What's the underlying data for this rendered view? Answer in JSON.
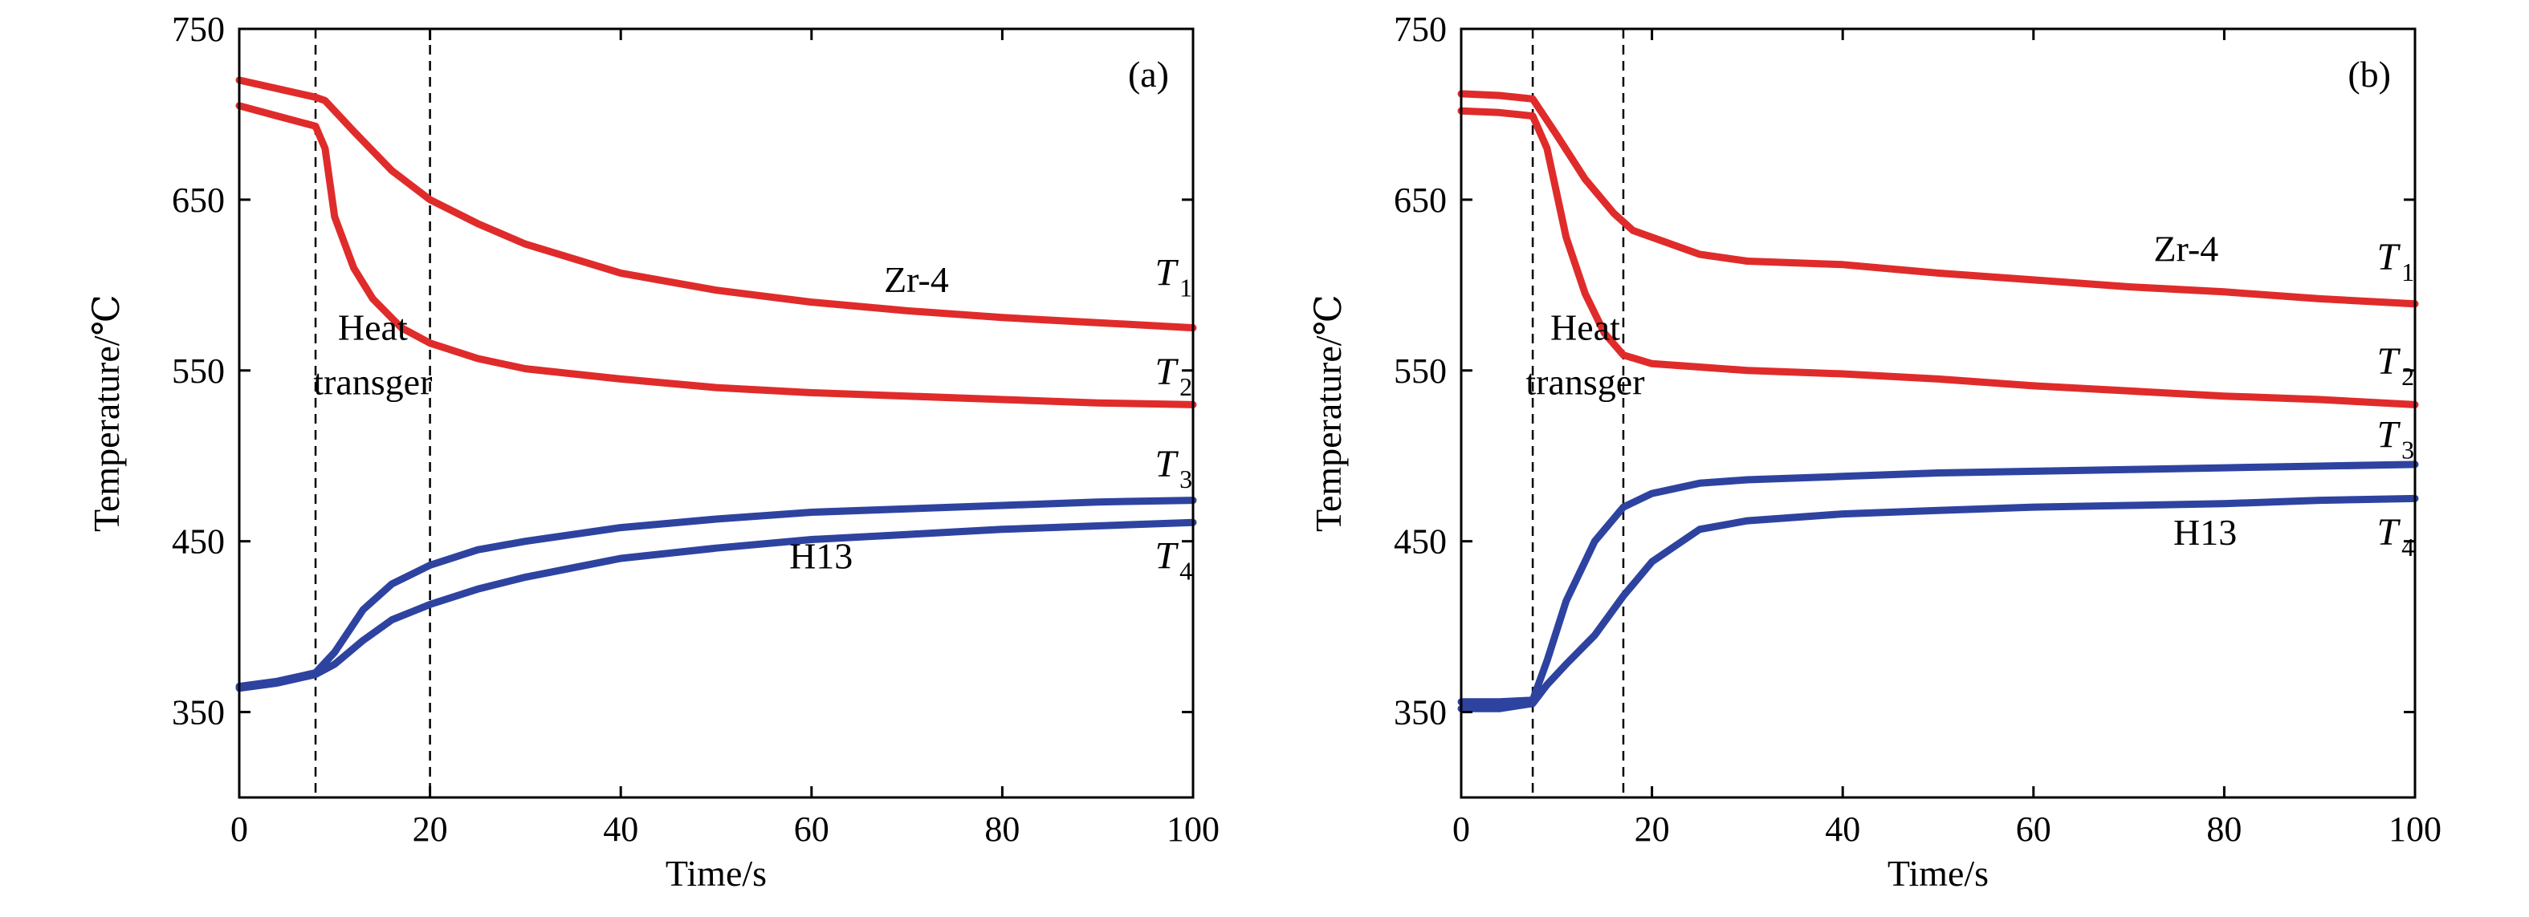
{
  "chart_data": [
    {
      "type": "line",
      "panel_label": "(a)",
      "xlabel": "Time/s",
      "ylabel": "Temperature/℃",
      "xlim": [
        0,
        100
      ],
      "ylim": [
        300,
        750
      ],
      "x_ticks": [
        0,
        20,
        40,
        60,
        80,
        100
      ],
      "y_ticks": [
        350,
        450,
        550,
        650,
        750
      ],
      "grid": false,
      "dashed_vlines": [
        8,
        20
      ],
      "annotations": [
        {
          "text": "Heat",
          "x": 14,
          "y": 568
        },
        {
          "text": "transger",
          "x": 14,
          "y": 536
        },
        {
          "text": "Zr-4",
          "x": 71,
          "y": 596
        },
        {
          "text": "H13",
          "x": 61,
          "y": 434
        }
      ],
      "series": [
        {
          "name": "T1",
          "label_main": "T",
          "label_sub": "1",
          "label_x": 96,
          "label_y": 600,
          "color": "#e02b2b",
          "x": [
            0,
            4,
            8,
            9,
            12,
            16,
            20,
            25,
            30,
            40,
            50,
            60,
            70,
            80,
            90,
            100
          ],
          "y": [
            720,
            715,
            710,
            708,
            690,
            667,
            650,
            636,
            624,
            607,
            597,
            590,
            585,
            581,
            578,
            575
          ]
        },
        {
          "name": "T2",
          "label_main": "T",
          "label_sub": "2",
          "label_x": 96,
          "label_y": 542,
          "color": "#e02b2b",
          "x": [
            0,
            4,
            8,
            9,
            10,
            12,
            14,
            17,
            20,
            25,
            30,
            40,
            50,
            60,
            70,
            80,
            90,
            100
          ],
          "y": [
            705,
            699,
            693,
            680,
            640,
            610,
            592,
            575,
            566,
            557,
            551,
            545,
            540,
            537,
            535,
            533,
            531,
            530
          ]
        },
        {
          "name": "T3",
          "label_main": "T",
          "label_sub": "3",
          "label_x": 96,
          "label_y": 488,
          "color": "#2e43a0",
          "x": [
            0,
            4,
            8,
            10,
            13,
            16,
            20,
            25,
            30,
            40,
            50,
            60,
            70,
            80,
            90,
            100
          ],
          "y": [
            365,
            368,
            373,
            385,
            410,
            425,
            436,
            445,
            450,
            458,
            463,
            467,
            469,
            471,
            473,
            474
          ]
        },
        {
          "name": "T4",
          "label_main": "T",
          "label_sub": "4",
          "label_x": 96,
          "label_y": 434,
          "color": "#2e43a0",
          "x": [
            0,
            4,
            8,
            10,
            13,
            16,
            20,
            25,
            30,
            40,
            50,
            60,
            70,
            80,
            90,
            100
          ],
          "y": [
            364,
            367,
            372,
            378,
            392,
            404,
            413,
            422,
            429,
            440,
            446,
            451,
            454,
            457,
            459,
            461
          ]
        }
      ]
    },
    {
      "type": "line",
      "panel_label": "(b)",
      "xlabel": "Time/s",
      "ylabel": "Temperature/℃",
      "xlim": [
        0,
        100
      ],
      "ylim": [
        300,
        750
      ],
      "x_ticks": [
        0,
        20,
        40,
        60,
        80,
        100
      ],
      "y_ticks": [
        350,
        450,
        550,
        650,
        750
      ],
      "grid": false,
      "dashed_vlines": [
        7.5,
        17
      ],
      "annotations": [
        {
          "text": "Heat",
          "x": 13,
          "y": 568
        },
        {
          "text": "transger",
          "x": 13,
          "y": 536
        },
        {
          "text": "Zr-4",
          "x": 76,
          "y": 614
        },
        {
          "text": "H13",
          "x": 78,
          "y": 448
        }
      ],
      "series": [
        {
          "name": "T1",
          "label_main": "T",
          "label_sub": "1",
          "label_x": 96,
          "label_y": 609,
          "color": "#e02b2b",
          "x": [
            0,
            4,
            7.5,
            10,
            13,
            16,
            18,
            20,
            25,
            30,
            40,
            50,
            60,
            70,
            80,
            90,
            100
          ],
          "y": [
            712,
            711,
            709,
            688,
            662,
            642,
            632,
            628,
            618,
            614,
            612,
            607,
            603,
            599,
            596,
            592,
            589
          ]
        },
        {
          "name": "T2",
          "label_main": "T",
          "label_sub": "2",
          "label_x": 96,
          "label_y": 548,
          "color": "#e02b2b",
          "x": [
            0,
            4,
            7.5,
            9,
            11,
            13,
            15,
            17,
            20,
            25,
            30,
            40,
            50,
            60,
            70,
            80,
            90,
            100
          ],
          "y": [
            702,
            701,
            699,
            680,
            628,
            595,
            572,
            559,
            554,
            552,
            550,
            548,
            545,
            541,
            538,
            535,
            533,
            530
          ]
        },
        {
          "name": "T3",
          "label_main": "T",
          "label_sub": "3",
          "label_x": 96,
          "label_y": 505,
          "color": "#2e43a0",
          "x": [
            0,
            4,
            7.5,
            9,
            11,
            14,
            17,
            20,
            25,
            30,
            40,
            50,
            60,
            70,
            80,
            90,
            100
          ],
          "y": [
            356,
            356,
            357,
            380,
            415,
            450,
            470,
            478,
            484,
            486,
            488,
            490,
            491,
            492,
            493,
            494,
            495
          ]
        },
        {
          "name": "T4",
          "label_main": "T",
          "label_sub": "4",
          "label_x": 96,
          "label_y": 448,
          "color": "#2e43a0",
          "x": [
            0,
            4,
            7.5,
            9,
            11,
            14,
            17,
            20,
            25,
            30,
            40,
            50,
            60,
            70,
            80,
            90,
            100
          ],
          "y": [
            352,
            352,
            355,
            366,
            378,
            395,
            418,
            438,
            457,
            462,
            466,
            468,
            470,
            471,
            472,
            474,
            475
          ]
        }
      ]
    }
  ]
}
